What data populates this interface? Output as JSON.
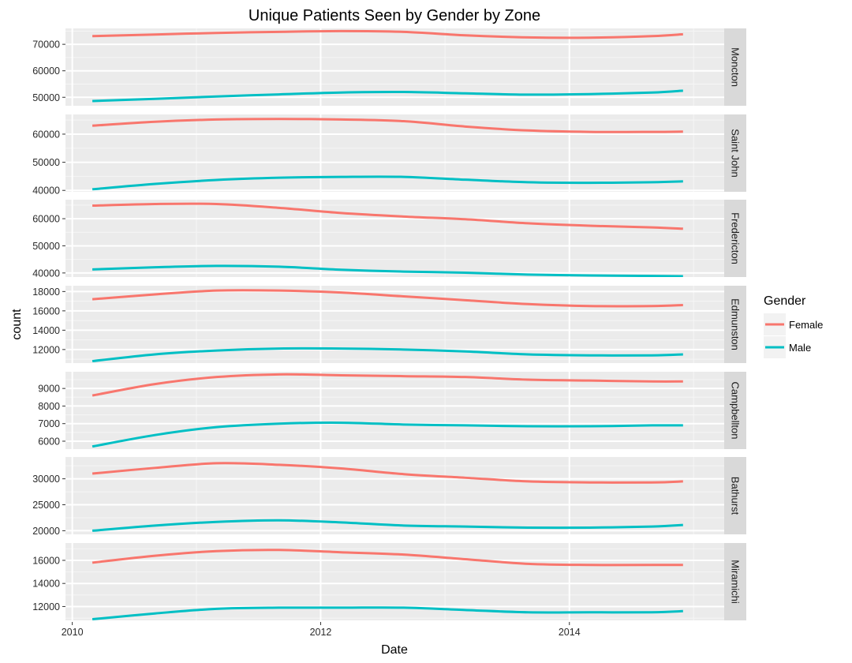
{
  "chart_data": {
    "type": "line",
    "title": "Unique Patients Seen by Gender by Zone",
    "xlabel": "Date",
    "ylabel": "count",
    "x_ticks": [
      "2010",
      "2012",
      "2014"
    ],
    "xlim": [
      "2009-12-12",
      "2015-04-01"
    ],
    "x": [
      "2010-03-01",
      "2010-09-01",
      "2011-03-01",
      "2011-09-01",
      "2012-03-01",
      "2012-09-01",
      "2013-03-01",
      "2013-09-01",
      "2014-03-01",
      "2014-09-01",
      "2014-12-01"
    ],
    "legend": {
      "title": "Gender",
      "entries": [
        "Female",
        "Male"
      ],
      "position": "right"
    },
    "colors": {
      "Female": "#F8766D",
      "Male": "#00BFC4"
    },
    "grid": true,
    "facets": [
      {
        "zone": "Moncton",
        "ylim": [
          46800,
          76000
        ],
        "y_ticks": [
          50000,
          60000,
          70000
        ],
        "series": [
          {
            "name": "Female",
            "values": [
              73100,
              73700,
              74300,
              74700,
              75000,
              74700,
              73400,
              72600,
              72500,
              73100,
              73800
            ]
          },
          {
            "name": "Male",
            "values": [
              48600,
              49400,
              50300,
              51100,
              51800,
              52000,
              51500,
              51000,
              51200,
              51800,
              52500
            ]
          }
        ]
      },
      {
        "zone": "Saint John",
        "ylim": [
          39500,
          67000
        ],
        "y_ticks": [
          40000,
          50000,
          60000
        ],
        "series": [
          {
            "name": "Female",
            "values": [
              63000,
              64400,
              65200,
              65400,
              65200,
              64600,
              62700,
              61300,
              60800,
              60800,
              60900
            ]
          },
          {
            "name": "Male",
            "values": [
              40400,
              42300,
              43700,
              44500,
              44800,
              44800,
              43800,
              42900,
              42700,
              42900,
              43200
            ]
          }
        ]
      },
      {
        "zone": "Fredericton",
        "ylim": [
          38500,
          67000
        ],
        "y_ticks": [
          40000,
          50000,
          60000
        ],
        "series": [
          {
            "name": "Female",
            "values": [
              64800,
              65400,
              65400,
              64000,
              62100,
              60800,
              59800,
              58300,
              57400,
              56800,
              56300
            ]
          },
          {
            "name": "Male",
            "values": [
              41300,
              42100,
              42600,
              42300,
              41200,
              40500,
              40100,
              39400,
              39100,
              38900,
              38800
            ]
          }
        ]
      },
      {
        "zone": "Edmunston",
        "ylim": [
          10600,
          18600
        ],
        "y_ticks": [
          12000,
          14000,
          16000,
          18000
        ],
        "series": [
          {
            "name": "Female",
            "values": [
              17200,
              17700,
              18100,
              18100,
              17900,
              17500,
              17100,
              16700,
              16500,
              16500,
              16600
            ]
          },
          {
            "name": "Male",
            "values": [
              10800,
              11500,
              11900,
              12100,
              12100,
              12000,
              11800,
              11500,
              11400,
              11400,
              11500
            ]
          }
        ]
      },
      {
        "zone": "Campbellton",
        "ylim": [
          5550,
          9950
        ],
        "y_ticks": [
          6000,
          7000,
          8000,
          9000
        ],
        "series": [
          {
            "name": "Female",
            "values": [
              8600,
              9250,
              9650,
              9800,
              9750,
              9700,
              9650,
              9500,
              9450,
              9400,
              9400
            ]
          },
          {
            "name": "Male",
            "values": [
              5700,
              6350,
              6800,
              7000,
              7050,
              6950,
              6900,
              6850,
              6850,
              6900,
              6900
            ]
          }
        ]
      },
      {
        "zone": "Bathurst",
        "ylim": [
          19300,
          34200
        ],
        "y_ticks": [
          20000,
          25000,
          30000
        ],
        "series": [
          {
            "name": "Female",
            "values": [
              31000,
              32100,
              33000,
              32700,
              32000,
              30900,
              30200,
              29500,
              29300,
              29300,
              29500
            ]
          },
          {
            "name": "Male",
            "values": [
              20000,
              21000,
              21700,
              22000,
              21600,
              21000,
              20800,
              20600,
              20600,
              20800,
              21100
            ]
          }
        ]
      },
      {
        "zone": "Miramichi",
        "ylim": [
          10800,
          17500
        ],
        "y_ticks": [
          12000,
          14000,
          16000
        ],
        "series": [
          {
            "name": "Female",
            "values": [
              15800,
              16400,
              16800,
              16900,
              16700,
              16500,
              16100,
              15700,
              15600,
              15600,
              15600
            ]
          },
          {
            "name": "Male",
            "values": [
              10900,
              11400,
              11800,
              11900,
              11900,
              11900,
              11700,
              11500,
              11500,
              11500,
              11600
            ]
          }
        ]
      }
    ]
  }
}
